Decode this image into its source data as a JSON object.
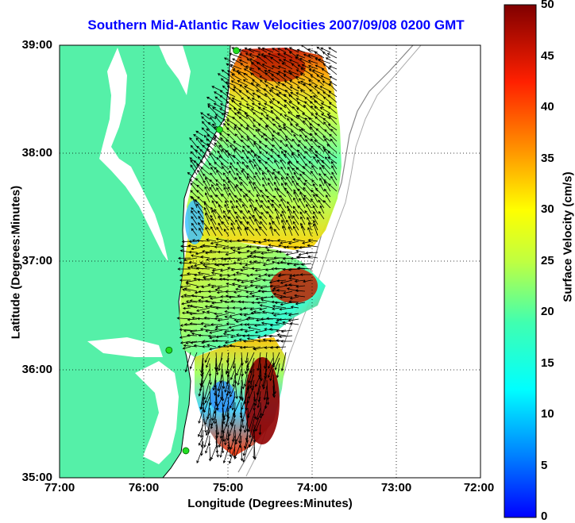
{
  "title": "Southern Mid-Atlantic Raw Velocities 2007/09/08 0200 GMT",
  "x_axis": {
    "label": "Longitude (Degrees:Minutes)",
    "ticks": [
      "77:00",
      "76:00",
      "75:00",
      "74:00",
      "73:00",
      "72:00"
    ]
  },
  "y_axis": {
    "label": "Latitude (Degrees:Minutes)",
    "ticks": [
      "39:00",
      "38:00",
      "37:00",
      "36:00",
      "35:00"
    ]
  },
  "colorbar": {
    "label": "Surface Velocity (cm/s)",
    "ticks": [
      "50",
      "45",
      "40",
      "35",
      "30",
      "25",
      "20",
      "15",
      "10",
      "5",
      "0"
    ],
    "min": 0,
    "max": 50
  },
  "colors": {
    "land": "#55f0a8",
    "ocean": "#ffffff",
    "title": "#0000ff",
    "coastline": "#000000",
    "bathymetry": "#888888",
    "station": "#22dd22"
  },
  "map": {
    "type": "surface-current-velocity",
    "lon_range": [
      -77,
      -72
    ],
    "lat_range": [
      35,
      39
    ],
    "grid": true,
    "vector_arrows": true,
    "stations": [
      {
        "lon": -74.9,
        "lat": 38.95
      },
      {
        "lon": -75.1,
        "lat": 38.22
      },
      {
        "lon": -75.7,
        "lat": 36.18
      },
      {
        "lon": -75.5,
        "lat": 35.25
      }
    ]
  }
}
